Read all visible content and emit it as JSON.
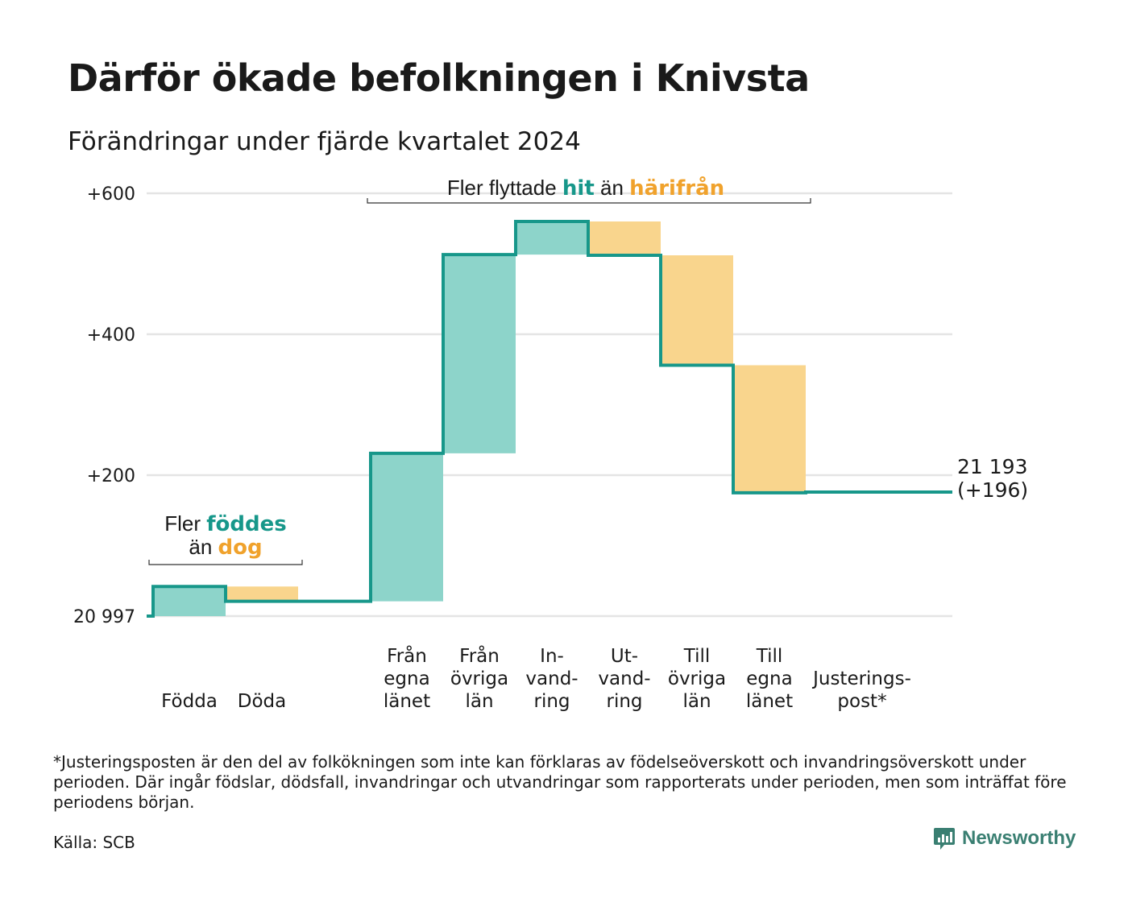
{
  "title": "Därför ökade befolkningen i Knivsta",
  "subtitle": "Förändringar under fjärde kvartalet 2024",
  "colors": {
    "increase_fill": "#8dd4ca",
    "decrease_fill": "#f9d58d",
    "step_line": "#17978a",
    "teal_text": "#17978a",
    "orange_text": "#f0a22c",
    "grid": "#e4e4e4"
  },
  "chart_data": {
    "type": "waterfall",
    "start_value": 20997,
    "start_label": "20 997",
    "y_tick_labels": [
      "+600",
      "+400",
      "+200"
    ],
    "y_range_change": [
      0,
      600
    ],
    "grid": true,
    "steps": [
      {
        "label_lines": [
          "Födda"
        ],
        "change": 42
      },
      {
        "label_lines": [
          "Döda"
        ],
        "change": -21
      },
      {
        "label_lines": [
          "Från",
          "egna",
          "länet"
        ],
        "change": 210
      },
      {
        "label_lines": [
          "Från",
          "övriga",
          "län"
        ],
        "change": 282
      },
      {
        "label_lines": [
          "In-",
          "vand-",
          "ring"
        ],
        "change": 47
      },
      {
        "label_lines": [
          "Ut-",
          "vand-",
          "ring"
        ],
        "change": -48
      },
      {
        "label_lines": [
          "Till",
          "övriga",
          "län"
        ],
        "change": -156
      },
      {
        "label_lines": [
          "Till",
          "egna",
          "länet"
        ],
        "change": -181
      },
      {
        "label_lines": [
          "Justerings-",
          "post*"
        ],
        "change": 1
      }
    ],
    "end_change": 196,
    "end_value_label": "21 193",
    "end_change_label": "(+196)",
    "annotations": [
      {
        "parts": [
          {
            "text": "Fler ",
            "color": "dark"
          },
          {
            "text": "föddes",
            "color": "teal"
          }
        ],
        "parts2": [
          {
            "text": "än ",
            "color": "dark"
          },
          {
            "text": "dog",
            "color": "orange"
          }
        ]
      },
      {
        "parts": [
          {
            "text": "Fler flyttade ",
            "color": "dark"
          },
          {
            "text": "hit",
            "color": "teal"
          },
          {
            "text": " än ",
            "color": "dark"
          },
          {
            "text": "härifrån",
            "color": "orange"
          }
        ]
      }
    ]
  },
  "footnote": "*Justeringsposten är den del av folkökningen som inte kan förklaras av födelseöverskott och invandringsöverskott under perioden. Där ingår födslar, dödsfall, invandringar och utvandringar som rapporterats under perioden, men som inträffat före periodens början.",
  "source": "Källa: SCB",
  "brand": {
    "name": "Newsworthy",
    "icon": "newsworthy-logo-icon"
  }
}
